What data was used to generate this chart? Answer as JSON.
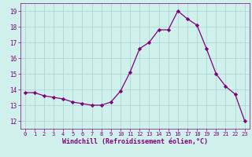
{
  "x": [
    0,
    1,
    2,
    3,
    4,
    5,
    6,
    7,
    8,
    9,
    10,
    11,
    12,
    13,
    14,
    15,
    16,
    17,
    18,
    19,
    20,
    21,
    22,
    23
  ],
  "y": [
    13.8,
    13.8,
    13.6,
    13.5,
    13.4,
    13.2,
    13.1,
    13.0,
    13.0,
    13.2,
    13.9,
    15.1,
    16.6,
    17.0,
    17.8,
    17.8,
    19.0,
    18.5,
    18.1,
    16.6,
    15.0,
    14.2,
    13.7,
    12.0
  ],
  "line_color": "#800080",
  "marker": "D",
  "marker_size": 2.2,
  "bg_color": "#cff0eb",
  "grid_color": "#aad8d3",
  "xlabel": "Windchill (Refroidissement éolien,°C)",
  "xlabel_color": "#800080",
  "tick_color": "#800080",
  "label_color": "#800080",
  "ylim": [
    11.5,
    19.5
  ],
  "xlim": [
    -0.5,
    23.5
  ],
  "yticks": [
    12,
    13,
    14,
    15,
    16,
    17,
    18,
    19
  ],
  "xticks": [
    0,
    1,
    2,
    3,
    4,
    5,
    6,
    7,
    8,
    9,
    10,
    11,
    12,
    13,
    14,
    15,
    16,
    17,
    18,
    19,
    20,
    21,
    22,
    23
  ]
}
